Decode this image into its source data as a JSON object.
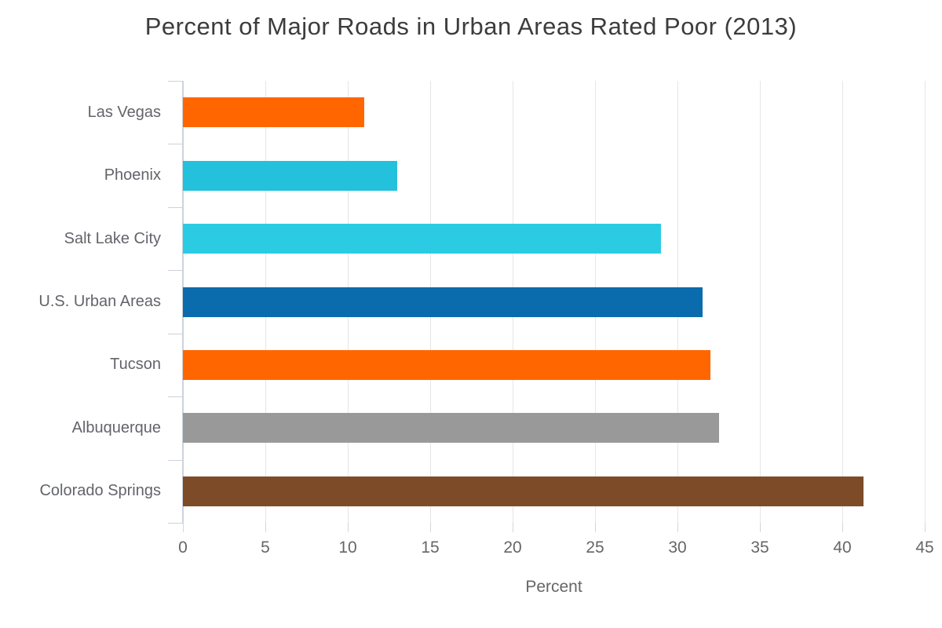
{
  "title": "Percent of Major Roads in Urban Areas Rated Poor (2013)",
  "chart_data": {
    "type": "bar",
    "orientation": "horizontal",
    "title": "Percent of Major Roads in Urban Areas Rated Poor (2013)",
    "categories": [
      "Las Vegas",
      "Phoenix",
      "Salt Lake City",
      "U.S. Urban Areas",
      "Tucson",
      "Albuquerque",
      "Colorado Springs"
    ],
    "values": [
      11,
      13,
      29,
      31.5,
      32,
      32.5,
      41.3
    ],
    "bar_colors": [
      "#FF6600",
      "#23C1DC",
      "#2CCBE4",
      "#0A6CAC",
      "#FF6600",
      "#999999",
      "#7D4B27"
    ],
    "xlabel": "Percent",
    "ylabel": "",
    "xlim": [
      0,
      45
    ],
    "xticks": [
      0,
      5,
      10,
      15,
      20,
      25,
      30,
      35,
      40,
      45
    ],
    "grid": true,
    "legend": false
  },
  "colors": {
    "title_text": "#3C3C3C",
    "axis_text": "#666666",
    "category_text": "#63646A",
    "grid_line": "#E6E6E6",
    "axis_line": "#CCD2DC"
  }
}
